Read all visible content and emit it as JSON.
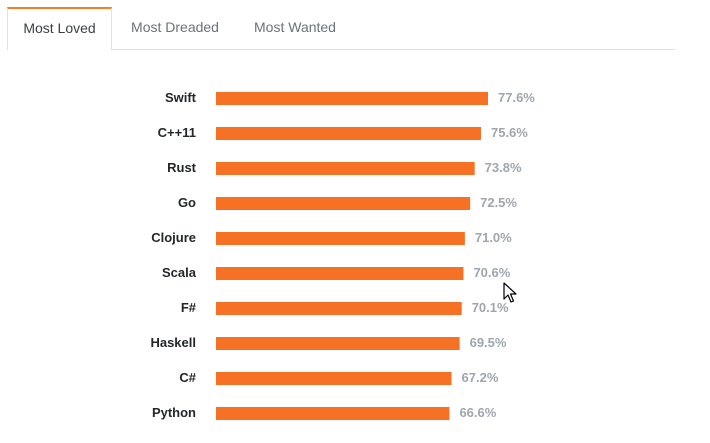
{
  "tabs": [
    {
      "label": "Most Loved",
      "active": true
    },
    {
      "label": "Most Dreaded",
      "active": false
    },
    {
      "label": "Most Wanted",
      "active": false
    }
  ],
  "colors": {
    "bar": "#f77124",
    "value_text": "#9fa6ad",
    "category_text": "#242729",
    "tab_accent": "#f48024"
  },
  "chart_data": {
    "type": "bar",
    "orientation": "horizontal",
    "categories": [
      "Swift",
      "C++11",
      "Rust",
      "Go",
      "Clojure",
      "Scala",
      "F#",
      "Haskell",
      "C#",
      "Python"
    ],
    "values": [
      77.6,
      75.6,
      73.8,
      72.5,
      71.0,
      70.6,
      70.1,
      69.5,
      67.2,
      66.6
    ],
    "value_labels": [
      "77.6%",
      "75.6%",
      "73.8%",
      "72.5%",
      "71.0%",
      "70.6%",
      "70.1%",
      "69.5%",
      "67.2%",
      "66.6%"
    ],
    "unit": "%",
    "xlim": [
      0,
      100
    ],
    "grid": false,
    "legend": "none"
  }
}
